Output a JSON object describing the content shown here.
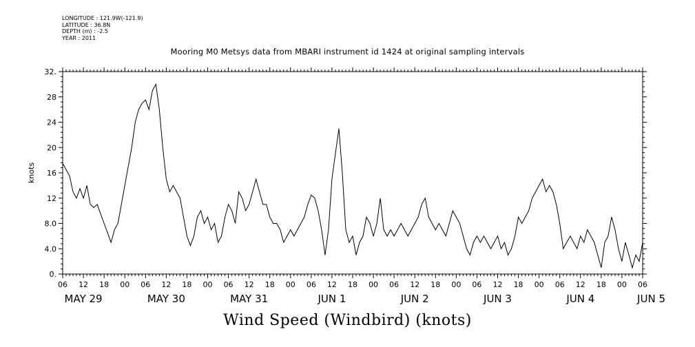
{
  "meta": {
    "longitude": "LONGITUDE : 121.9W(-121.9)",
    "latitude": "LATITUDE : 36.8N",
    "depth": "DEPTH (m) : -2.5",
    "year": "YEAR : 2011"
  },
  "chart_data": {
    "type": "line",
    "title": "Mooring M0 Metsys data from MBARI instrument id 1424 at original sampling intervals",
    "xlabel": "Wind Speed (Windbird) (knots)",
    "ylabel": "knots",
    "ylim": [
      0,
      32
    ],
    "yticks": [
      "0.",
      "4.0",
      "8.0",
      "12",
      "16",
      "20",
      "24",
      "28",
      "32."
    ],
    "x_hour_ticks": [
      "06",
      "12",
      "18",
      "00",
      "06",
      "12",
      "18",
      "00",
      "06",
      "12",
      "18",
      "00",
      "06",
      "12",
      "18",
      "00",
      "06",
      "12",
      "18",
      "00",
      "06",
      "12",
      "18",
      "00",
      "06",
      "12",
      "18",
      "00",
      "06"
    ],
    "x_day_labels": [
      "MAY 29",
      "MAY 30",
      "MAY 31",
      "JUN  1",
      "JUN  2",
      "JUN  3",
      "JUN  4",
      "JUN  5"
    ],
    "x_range_hours_since_may29_00": [
      6,
      174
    ],
    "grid": false,
    "series": [
      {
        "points": [
          [
            6,
            17.5
          ],
          [
            7,
            16.5
          ],
          [
            8,
            15.5
          ],
          [
            9,
            13
          ],
          [
            10,
            12
          ],
          [
            11,
            13.5
          ],
          [
            12,
            12
          ],
          [
            13,
            14
          ],
          [
            14,
            11
          ],
          [
            15,
            10.5
          ],
          [
            16,
            11
          ],
          [
            17,
            9.5
          ],
          [
            18,
            8
          ],
          [
            19,
            6.5
          ],
          [
            20,
            5
          ],
          [
            21,
            7
          ],
          [
            22,
            8
          ],
          [
            23,
            11
          ],
          [
            24,
            14
          ],
          [
            25,
            17
          ],
          [
            26,
            20
          ],
          [
            27,
            24
          ],
          [
            28,
            26
          ],
          [
            29,
            27
          ],
          [
            30,
            27.5
          ],
          [
            31,
            26
          ],
          [
            32,
            29
          ],
          [
            33,
            30
          ],
          [
            34,
            26
          ],
          [
            35,
            20
          ],
          [
            36,
            15
          ],
          [
            37,
            13
          ],
          [
            38,
            14
          ],
          [
            39,
            13
          ],
          [
            40,
            12
          ],
          [
            41,
            9
          ],
          [
            42,
            6
          ],
          [
            43,
            4.5
          ],
          [
            44,
            6
          ],
          [
            45,
            9
          ],
          [
            46,
            10
          ],
          [
            47,
            8
          ],
          [
            48,
            9
          ],
          [
            49,
            7
          ],
          [
            50,
            8
          ],
          [
            51,
            5
          ],
          [
            52,
            6
          ],
          [
            53,
            9
          ],
          [
            54,
            11
          ],
          [
            55,
            10
          ],
          [
            56,
            8
          ],
          [
            57,
            13
          ],
          [
            58,
            12
          ],
          [
            59,
            10
          ],
          [
            60,
            11
          ],
          [
            61,
            13
          ],
          [
            62,
            15
          ],
          [
            63,
            13
          ],
          [
            64,
            11
          ],
          [
            65,
            11
          ],
          [
            66,
            9
          ],
          [
            67,
            8
          ],
          [
            68,
            8
          ],
          [
            69,
            7
          ],
          [
            70,
            5
          ],
          [
            71,
            6
          ],
          [
            72,
            7
          ],
          [
            73,
            6
          ],
          [
            74,
            7
          ],
          [
            75,
            8
          ],
          [
            76,
            9
          ],
          [
            77,
            11
          ],
          [
            78,
            12.5
          ],
          [
            79,
            12
          ],
          [
            80,
            10
          ],
          [
            81,
            7
          ],
          [
            82,
            3
          ],
          [
            83,
            7
          ],
          [
            84,
            15
          ],
          [
            85,
            19
          ],
          [
            86,
            23
          ],
          [
            87,
            16
          ],
          [
            88,
            7
          ],
          [
            89,
            5
          ],
          [
            90,
            6
          ],
          [
            91,
            3
          ],
          [
            92,
            5
          ],
          [
            93,
            6
          ],
          [
            94,
            9
          ],
          [
            95,
            8
          ],
          [
            96,
            6
          ],
          [
            97,
            8
          ],
          [
            98,
            12
          ],
          [
            99,
            7
          ],
          [
            100,
            6
          ],
          [
            101,
            7
          ],
          [
            102,
            6
          ],
          [
            103,
            7
          ],
          [
            104,
            8
          ],
          [
            105,
            7
          ],
          [
            106,
            6
          ],
          [
            107,
            7
          ],
          [
            108,
            8
          ],
          [
            109,
            9
          ],
          [
            110,
            11
          ],
          [
            111,
            12
          ],
          [
            112,
            9
          ],
          [
            113,
            8
          ],
          [
            114,
            7
          ],
          [
            115,
            8
          ],
          [
            116,
            7
          ],
          [
            117,
            6
          ],
          [
            118,
            8
          ],
          [
            119,
            10
          ],
          [
            120,
            9
          ],
          [
            121,
            8
          ],
          [
            122,
            6
          ],
          [
            123,
            4
          ],
          [
            124,
            3
          ],
          [
            125,
            5
          ],
          [
            126,
            6
          ],
          [
            127,
            5
          ],
          [
            128,
            6
          ],
          [
            129,
            5
          ],
          [
            130,
            4
          ],
          [
            131,
            5
          ],
          [
            132,
            6
          ],
          [
            133,
            4
          ],
          [
            134,
            5
          ],
          [
            135,
            3
          ],
          [
            136,
            4
          ],
          [
            137,
            6
          ],
          [
            138,
            9
          ],
          [
            139,
            8
          ],
          [
            140,
            9
          ],
          [
            141,
            10
          ],
          [
            142,
            12
          ],
          [
            143,
            13
          ],
          [
            144,
            14
          ],
          [
            145,
            15
          ],
          [
            146,
            13
          ],
          [
            147,
            14
          ],
          [
            148,
            13
          ],
          [
            149,
            11
          ],
          [
            150,
            8
          ],
          [
            151,
            4
          ],
          [
            152,
            5
          ],
          [
            153,
            6
          ],
          [
            154,
            5
          ],
          [
            155,
            4
          ],
          [
            156,
            6
          ],
          [
            157,
            5
          ],
          [
            158,
            7
          ],
          [
            159,
            6
          ],
          [
            160,
            5
          ],
          [
            161,
            3
          ],
          [
            162,
            1
          ],
          [
            163,
            5
          ],
          [
            164,
            6
          ],
          [
            165,
            9
          ],
          [
            166,
            7
          ],
          [
            167,
            4
          ],
          [
            168,
            2
          ],
          [
            169,
            5
          ],
          [
            170,
            3
          ],
          [
            171,
            1
          ],
          [
            172,
            3
          ],
          [
            173,
            2
          ],
          [
            174,
            5
          ]
        ]
      }
    ]
  }
}
